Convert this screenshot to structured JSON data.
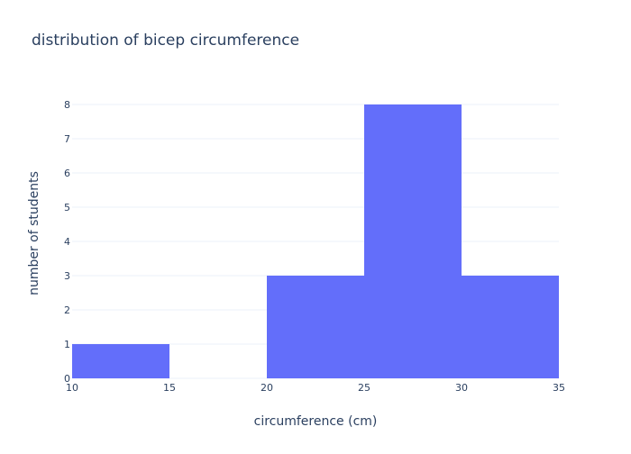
{
  "chart_data": {
    "type": "bar",
    "title": "distribution of bicep circumference",
    "xlabel": "circumference (cm)",
    "ylabel": "number of students",
    "bins": [
      {
        "start": 10,
        "end": 15,
        "count": 1
      },
      {
        "start": 15,
        "end": 20,
        "count": 0
      },
      {
        "start": 20,
        "end": 25,
        "count": 3
      },
      {
        "start": 25,
        "end": 30,
        "count": 8
      },
      {
        "start": 30,
        "end": 35,
        "count": 3
      }
    ],
    "xlim": [
      10,
      35
    ],
    "ylim": [
      0,
      8
    ],
    "x_ticks": [
      "10",
      "15",
      "20",
      "25",
      "30",
      "35"
    ],
    "y_ticks": [
      "0",
      "1",
      "2",
      "3",
      "4",
      "5",
      "6",
      "7",
      "8"
    ],
    "grid": true,
    "colors": {
      "bar": "#636efa",
      "grid": "#ebf0f8",
      "text": "#2a3f5f",
      "background": "#ffffff"
    }
  }
}
